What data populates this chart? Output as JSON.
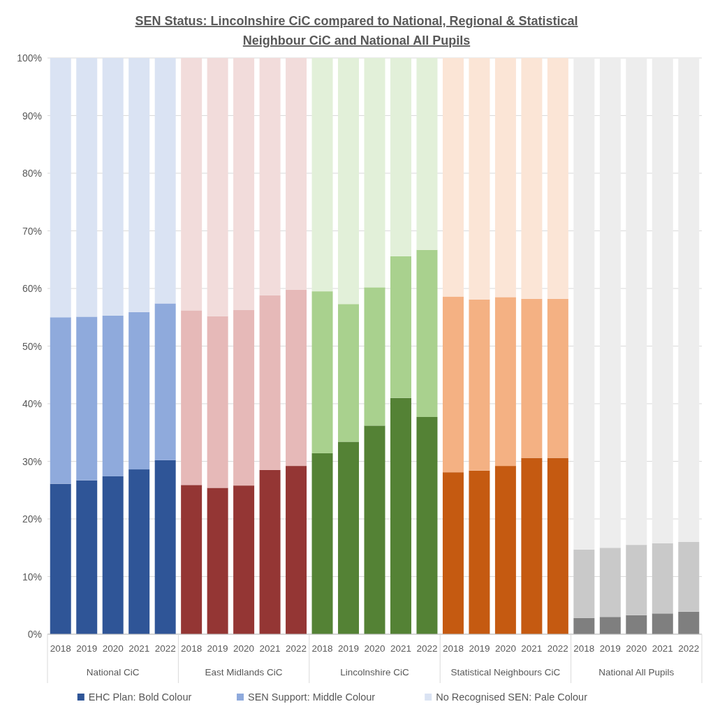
{
  "chart_data": {
    "type": "bar",
    "stacked": true,
    "title": "SEN Status: Lincolnshire CiC compared to National, Regional & Statistical Neighbour CiC and National All Pupils",
    "categories": [
      "2018",
      "2019",
      "2020",
      "2021",
      "2022",
      "2018",
      "2019",
      "2020",
      "2021",
      "2022",
      "2018",
      "2019",
      "2020",
      "2021",
      "2022",
      "2018",
      "2019",
      "2020",
      "2021",
      "2022",
      "2018",
      "2019",
      "2020",
      "2021",
      "2022"
    ],
    "annotations": [
      "National CiC",
      "East Midlands CiC",
      "Lincolnshire CiC",
      "Statistical Neighbours CiC",
      "National All Pupils"
    ],
    "series": [
      {
        "name": "EHC Plan: Bold Colour",
        "color": "#2f5597",
        "values": [
          26.1,
          26.7,
          27.4,
          28.6,
          30.2,
          25.9,
          25.4,
          25.8,
          28.5,
          29.2,
          31.4,
          33.4,
          36.2,
          41.0,
          37.7,
          28.1,
          28.4,
          29.2,
          30.6,
          30.6,
          2.8,
          3.0,
          3.3,
          3.6,
          3.9
        ],
        "colors": [
          "#2f5597",
          "#2f5597",
          "#2f5597",
          "#2f5597",
          "#2f5597",
          "#943634",
          "#943634",
          "#943634",
          "#943634",
          "#943634",
          "#548235",
          "#548235",
          "#548235",
          "#548235",
          "#548235",
          "#c55a11",
          "#c55a11",
          "#c55a11",
          "#c55a11",
          "#c55a11",
          "#7f7f7f",
          "#7f7f7f",
          "#7f7f7f",
          "#7f7f7f",
          "#7f7f7f"
        ]
      },
      {
        "name": "SEN Support: Middle Colour",
        "color": "#8faadc",
        "values": [
          28.9,
          28.4,
          27.9,
          27.3,
          27.2,
          30.3,
          29.8,
          30.5,
          30.3,
          30.6,
          28.1,
          23.9,
          24.0,
          24.6,
          29.0,
          30.5,
          29.7,
          29.3,
          27.6,
          27.6,
          11.9,
          12.0,
          12.2,
          12.2,
          12.1
        ],
        "colors": [
          "#8faadc",
          "#8faadc",
          "#8faadc",
          "#8faadc",
          "#8faadc",
          "#e6b9b8",
          "#e6b9b8",
          "#e6b9b8",
          "#e6b9b8",
          "#e6b9b8",
          "#a9d18e",
          "#a9d18e",
          "#a9d18e",
          "#a9d18e",
          "#a9d18e",
          "#f4b183",
          "#f4b183",
          "#f4b183",
          "#f4b183",
          "#f4b183",
          "#c9c9c9",
          "#c9c9c9",
          "#c9c9c9",
          "#c9c9c9",
          "#c9c9c9"
        ]
      },
      {
        "name": "No Recognised SEN: Pale Colour",
        "color": "#dae3f3",
        "values": [
          45.0,
          44.9,
          44.7,
          44.1,
          42.6,
          43.8,
          44.8,
          43.7,
          41.2,
          40.2,
          40.5,
          42.7,
          39.8,
          34.4,
          33.3,
          41.4,
          41.9,
          41.5,
          41.8,
          41.8,
          85.3,
          85.0,
          84.5,
          84.2,
          84.0
        ],
        "colors": [
          "#dae3f3",
          "#dae3f3",
          "#dae3f3",
          "#dae3f3",
          "#dae3f3",
          "#f2dcdb",
          "#f2dcdb",
          "#f2dcdb",
          "#f2dcdb",
          "#f2dcdb",
          "#e2f0d9",
          "#e2f0d9",
          "#e2f0d9",
          "#e2f0d9",
          "#e2f0d9",
          "#fbe5d6",
          "#fbe5d6",
          "#fbe5d6",
          "#fbe5d6",
          "#fbe5d6",
          "#ededed",
          "#ededed",
          "#ededed",
          "#ededed",
          "#ededed"
        ]
      }
    ],
    "ylim": [
      0,
      100
    ],
    "yticks": [
      {
        "value": 0,
        "label": "0%"
      },
      {
        "value": 10,
        "label": "10%"
      },
      {
        "value": 20,
        "label": "20%"
      },
      {
        "value": 30,
        "label": "30%"
      },
      {
        "value": 40,
        "label": "40%"
      },
      {
        "value": 50,
        "label": "50%"
      },
      {
        "value": 60,
        "label": "60%"
      },
      {
        "value": 70,
        "label": "70%"
      },
      {
        "value": 80,
        "label": "80%"
      },
      {
        "value": 90,
        "label": "90%"
      },
      {
        "value": 100,
        "label": "100%"
      }
    ],
    "grid": "y",
    "legend": "bottom"
  }
}
